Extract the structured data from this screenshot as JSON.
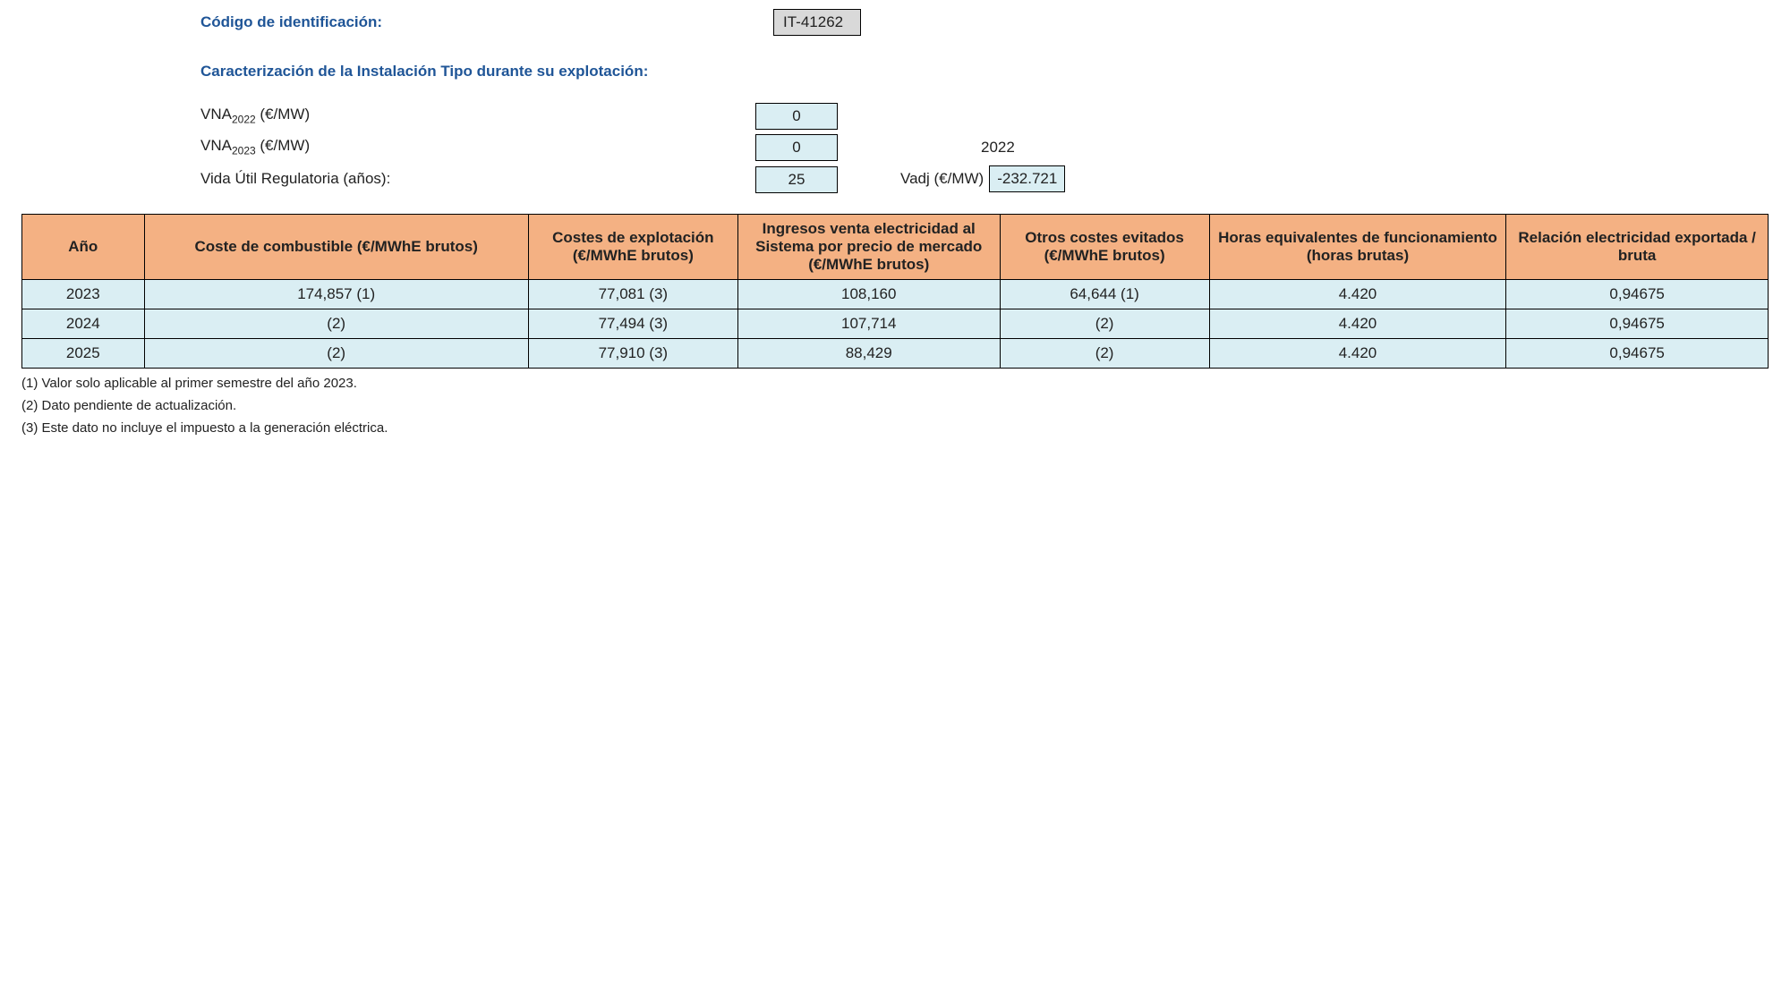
{
  "header": {
    "id_label": "Código de identificación:",
    "id_value": "IT-41262",
    "section_title": "Caracterización de la Instalación Tipo durante su explotación:"
  },
  "params": {
    "vna2022_label_pre": "VNA",
    "vna2022_sub": "2022",
    "vna_unit": " (€/MW)",
    "vna2022_value": "0",
    "vna2023_label_pre": "VNA",
    "vna2023_sub": "2023",
    "vna2023_value": "0",
    "side_year": "2022",
    "life_label": "Vida Útil Regulatoria (años):",
    "life_value": "25",
    "vadj_label": "Vadj (€/MW)",
    "vadj_value": "-232.721"
  },
  "table": {
    "columns": [
      "Año",
      "Coste de combustible (€/MWhE brutos)",
      "Costes de explotación (€/MWhE brutos)",
      "Ingresos venta electricidad al Sistema por precio de mercado (€/MWhE brutos)",
      "Otros costes evitados (€/MWhE brutos)",
      "Horas equivalentes de funcionamiento (horas brutas)",
      "Relación electricidad exportada / bruta"
    ],
    "rows": [
      [
        "2023",
        "174,857 (1)",
        "77,081 (3)",
        "108,160",
        "64,644 (1)",
        "4.420",
        "0,94675"
      ],
      [
        "2024",
        "(2)",
        "77,494 (3)",
        "107,714",
        "(2)",
        "4.420",
        "0,94675"
      ],
      [
        "2025",
        "(2)",
        "77,910 (3)",
        "88,429",
        "(2)",
        "4.420",
        "0,94675"
      ]
    ]
  },
  "footnotes": [
    "(1) Valor solo aplicable al primer semestre del año 2023.",
    "(2) Dato pendiente de actualización.",
    "(3) Este dato no incluye el impuesto a la generación eléctrica."
  ],
  "style": {
    "header_color": "#1f5597",
    "table_header_bg": "#f4b183",
    "value_box_bg": "#daeef3",
    "id_box_bg": "#d9d9d9",
    "border_color": "#000000",
    "body_bg": "#ffffff",
    "font_family": "Arial",
    "base_fontsize_pt": 13
  }
}
